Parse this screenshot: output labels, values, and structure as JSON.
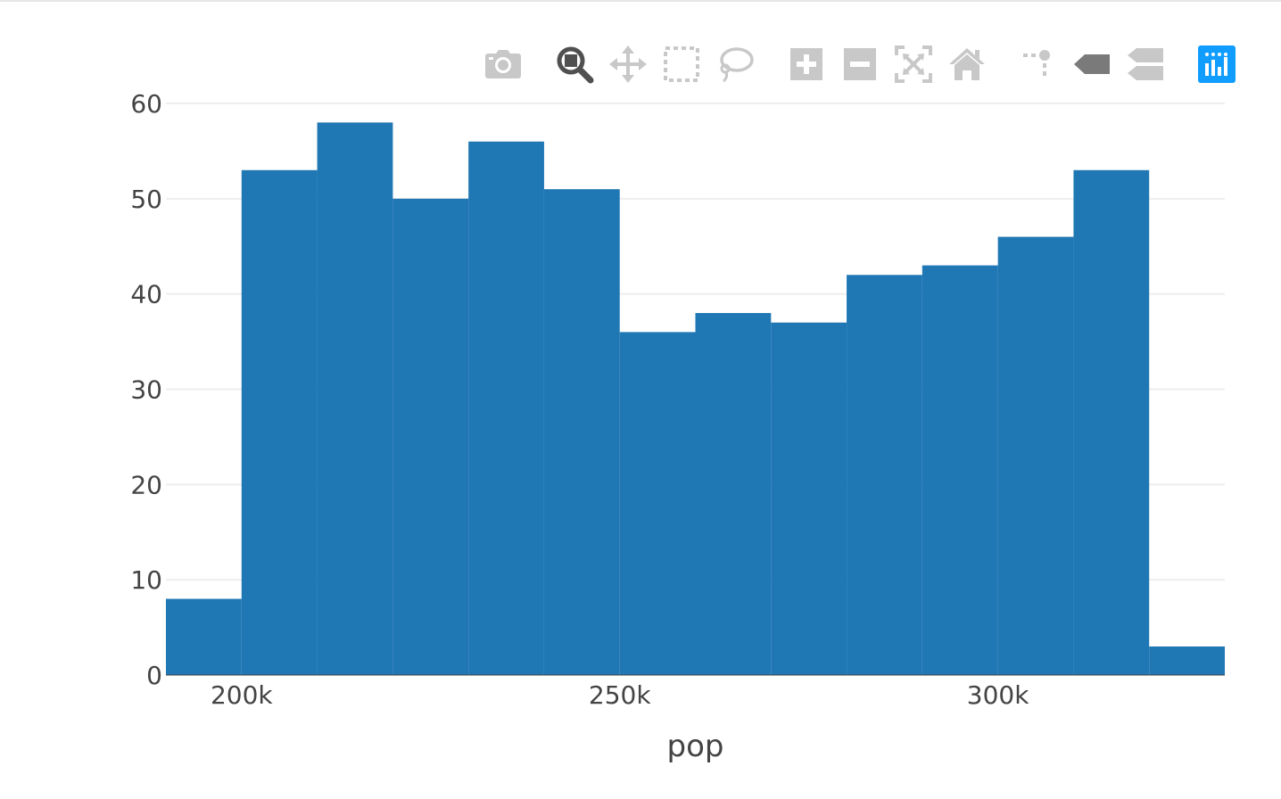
{
  "modebar": {
    "buttons": [
      {
        "name": "download-plot-icon",
        "active": false
      },
      {
        "name": "zoom-icon",
        "active": true
      },
      {
        "name": "pan-icon",
        "active": false
      },
      {
        "name": "box-select-icon",
        "active": false
      },
      {
        "name": "lasso-select-icon",
        "active": false
      },
      {
        "name": "zoom-in-icon",
        "active": false
      },
      {
        "name": "zoom-out-icon",
        "active": false
      },
      {
        "name": "autoscale-icon",
        "active": false
      },
      {
        "name": "reset-axes-icon",
        "active": false
      },
      {
        "name": "toggle-spike-lines-icon",
        "active": false
      },
      {
        "name": "hover-closest-icon",
        "active": false
      },
      {
        "name": "hover-compare-icon",
        "active": false
      },
      {
        "name": "plotly-logo-icon",
        "active": false
      }
    ],
    "colors": {
      "inactive": "#c8c8c8",
      "active": "#505050",
      "dark": "#7a7a7a",
      "logo": "#119dff"
    }
  },
  "chart_data": {
    "type": "bar",
    "subtype": "histogram",
    "xlabel": "pop",
    "ylabel": "",
    "title": "",
    "bins": [
      {
        "start": 190000,
        "end": 200000,
        "count": 8
      },
      {
        "start": 200000,
        "end": 210000,
        "count": 53
      },
      {
        "start": 210000,
        "end": 220000,
        "count": 58
      },
      {
        "start": 220000,
        "end": 230000,
        "count": 50
      },
      {
        "start": 230000,
        "end": 240000,
        "count": 56
      },
      {
        "start": 240000,
        "end": 250000,
        "count": 51
      },
      {
        "start": 250000,
        "end": 260000,
        "count": 36
      },
      {
        "start": 260000,
        "end": 270000,
        "count": 38
      },
      {
        "start": 270000,
        "end": 280000,
        "count": 37
      },
      {
        "start": 280000,
        "end": 290000,
        "count": 42
      },
      {
        "start": 290000,
        "end": 300000,
        "count": 43
      },
      {
        "start": 300000,
        "end": 310000,
        "count": 46
      },
      {
        "start": 310000,
        "end": 320000,
        "count": 53
      },
      {
        "start": 320000,
        "end": 330000,
        "count": 3
      }
    ],
    "xlim": [
      190000,
      330000
    ],
    "ylim": [
      0,
      60
    ],
    "xticks": [
      {
        "value": 200000,
        "label": "200k"
      },
      {
        "value": 250000,
        "label": "250k"
      },
      {
        "value": 300000,
        "label": "300k"
      }
    ],
    "yticks": [
      {
        "value": 0,
        "label": "0"
      },
      {
        "value": 10,
        "label": "10"
      },
      {
        "value": 20,
        "label": "20"
      },
      {
        "value": 30,
        "label": "30"
      },
      {
        "value": 40,
        "label": "40"
      },
      {
        "value": 50,
        "label": "50"
      },
      {
        "value": 60,
        "label": "60"
      }
    ],
    "grid": true,
    "bar_color": "#1f77b4",
    "grid_color": "#eeeeee",
    "text_color": "#444444"
  }
}
